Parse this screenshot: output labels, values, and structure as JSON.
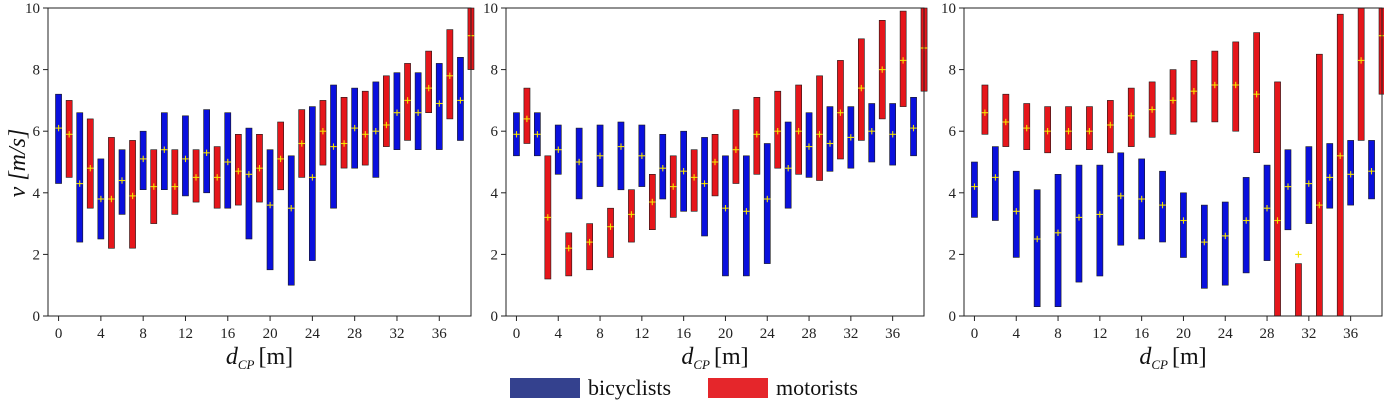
{
  "colors": {
    "bicyclists": "#0a10dd",
    "motorists": "#e5161b",
    "legend_bicyclists": "#34418e",
    "legend_motorists": "#e5262b",
    "median": "#f5e400",
    "axis": "#222222"
  },
  "legend": {
    "bicyclists": "bicyclists",
    "motorists": "motorists",
    "placement": "bottom-center"
  },
  "axes": {
    "ylabel": "v [m/s]",
    "xlabel_main": "d",
    "xlabel_sub": "CP",
    "xlabel_unit": "[m]"
  },
  "chart_data": [
    {
      "type": "range-bar",
      "xlim": [
        -1,
        39
      ],
      "ylim": [
        0,
        10
      ],
      "xticks": [
        0,
        4,
        8,
        12,
        16,
        20,
        24,
        28,
        32,
        36
      ],
      "yticks": [
        0,
        2,
        4,
        6,
        8,
        10
      ],
      "grid": false,
      "series": [
        {
          "name": "bicyclists",
          "x": [
            0,
            2,
            4,
            6,
            8,
            10,
            12,
            14,
            16,
            18,
            20,
            22,
            24,
            26,
            28,
            30,
            32,
            34,
            36,
            38
          ],
          "low": [
            4.3,
            2.4,
            2.5,
            3.3,
            4.1,
            4.1,
            3.9,
            4.0,
            3.5,
            2.5,
            1.5,
            1.0,
            1.8,
            3.5,
            4.8,
            4.5,
            5.4,
            5.4,
            5.4,
            5.7
          ],
          "high": [
            7.2,
            6.6,
            5.1,
            5.4,
            6.0,
            6.6,
            6.5,
            6.7,
            6.6,
            6.1,
            5.4,
            5.2,
            6.8,
            7.5,
            7.4,
            7.6,
            7.9,
            7.9,
            8.2,
            8.4
          ],
          "median": [
            6.1,
            4.3,
            3.8,
            4.4,
            5.1,
            5.4,
            5.1,
            5.3,
            5.0,
            4.6,
            3.6,
            3.5,
            4.5,
            5.5,
            6.1,
            6.0,
            6.6,
            6.6,
            6.9,
            7.0
          ]
        },
        {
          "name": "motorists",
          "x": [
            1,
            3,
            5,
            7,
            9,
            11,
            13,
            15,
            17,
            19,
            21,
            23,
            25,
            27,
            29,
            31,
            33,
            35,
            37,
            39
          ],
          "low": [
            4.5,
            3.5,
            2.2,
            2.2,
            3.0,
            3.3,
            3.7,
            3.5,
            3.6,
            3.7,
            4.1,
            4.5,
            4.9,
            4.8,
            4.9,
            5.5,
            5.7,
            6.6,
            6.4,
            8.0
          ],
          "high": [
            7.0,
            6.4,
            5.8,
            5.7,
            5.4,
            5.4,
            5.4,
            5.5,
            5.9,
            5.9,
            6.3,
            6.7,
            7.0,
            7.1,
            7.3,
            7.8,
            8.2,
            8.6,
            9.3,
            10.0
          ],
          "median": [
            5.9,
            4.8,
            3.8,
            3.9,
            4.2,
            4.2,
            4.5,
            4.5,
            4.7,
            4.8,
            5.1,
            5.6,
            6.0,
            5.6,
            5.9,
            6.2,
            7.0,
            7.4,
            7.8,
            9.1
          ]
        }
      ]
    },
    {
      "type": "range-bar",
      "xlim": [
        -1,
        39
      ],
      "ylim": [
        0,
        10
      ],
      "xticks": [
        0,
        4,
        8,
        12,
        16,
        20,
        24,
        28,
        32,
        36
      ],
      "yticks": [
        0,
        2,
        4,
        6,
        8,
        10
      ],
      "grid": false,
      "series": [
        {
          "name": "bicyclists",
          "x": [
            0,
            2,
            4,
            6,
            8,
            10,
            12,
            14,
            16,
            18,
            20,
            22,
            24,
            26,
            28,
            30,
            32,
            34,
            36,
            38
          ],
          "low": [
            5.2,
            5.2,
            4.6,
            3.8,
            4.2,
            4.1,
            4.2,
            3.8,
            3.4,
            2.6,
            1.3,
            1.3,
            1.7,
            3.5,
            4.5,
            4.7,
            4.8,
            5.0,
            4.9,
            5.2
          ],
          "high": [
            6.6,
            6.6,
            6.2,
            6.1,
            6.2,
            6.3,
            6.2,
            5.9,
            6.0,
            5.8,
            5.2,
            5.2,
            5.6,
            6.3,
            6.6,
            6.8,
            6.8,
            6.9,
            6.9,
            7.1
          ],
          "median": [
            5.9,
            5.9,
            5.4,
            5.0,
            5.2,
            5.5,
            5.2,
            4.8,
            4.7,
            4.3,
            3.5,
            3.4,
            3.8,
            4.8,
            5.5,
            5.6,
            5.8,
            6.0,
            5.9,
            6.1
          ]
        },
        {
          "name": "motorists",
          "x": [
            1,
            3,
            5,
            7,
            9,
            11,
            13,
            15,
            17,
            19,
            21,
            23,
            25,
            27,
            29,
            31,
            33,
            35,
            37,
            39
          ],
          "low": [
            5.6,
            1.2,
            1.3,
            1.5,
            1.9,
            2.4,
            2.8,
            3.2,
            3.4,
            3.9,
            4.3,
            4.6,
            4.8,
            4.6,
            4.4,
            5.1,
            5.7,
            6.4,
            6.8,
            7.3
          ],
          "high": [
            7.4,
            5.2,
            2.7,
            3.0,
            3.5,
            4.1,
            4.6,
            5.2,
            5.4,
            5.9,
            6.7,
            7.1,
            7.3,
            7.5,
            7.8,
            8.3,
            9.0,
            9.6,
            9.9,
            10.0
          ],
          "median": [
            6.4,
            3.2,
            2.2,
            2.4,
            2.9,
            3.3,
            3.7,
            4.2,
            4.5,
            5.0,
            5.4,
            5.9,
            6.0,
            6.0,
            5.9,
            6.6,
            7.4,
            8.0,
            8.3,
            8.7
          ]
        }
      ]
    },
    {
      "type": "range-bar",
      "xlim": [
        -1,
        39
      ],
      "ylim": [
        0,
        10
      ],
      "xticks": [
        0,
        4,
        8,
        12,
        16,
        20,
        24,
        28,
        32,
        36
      ],
      "yticks": [
        0,
        2,
        4,
        6,
        8,
        10
      ],
      "grid": false,
      "series": [
        {
          "name": "bicyclists",
          "x": [
            0,
            2,
            4,
            6,
            8,
            10,
            12,
            14,
            16,
            18,
            20,
            22,
            24,
            26,
            28,
            30,
            32,
            34,
            36,
            38
          ],
          "low": [
            3.2,
            3.1,
            1.9,
            0.3,
            0.3,
            1.1,
            1.3,
            2.3,
            2.5,
            2.4,
            1.9,
            0.9,
            1.0,
            1.4,
            1.8,
            2.8,
            3.0,
            3.5,
            3.6,
            3.8
          ],
          "high": [
            5.0,
            5.5,
            4.7,
            4.1,
            4.6,
            4.9,
            4.9,
            5.3,
            5.1,
            4.7,
            4.0,
            3.6,
            3.7,
            4.5,
            4.9,
            5.4,
            5.5,
            5.6,
            5.7,
            5.7
          ],
          "median": [
            4.2,
            4.5,
            3.4,
            2.5,
            2.7,
            3.2,
            3.3,
            3.9,
            3.8,
            3.6,
            3.1,
            2.4,
            2.6,
            3.1,
            3.5,
            4.2,
            4.3,
            4.5,
            4.6,
            4.7
          ]
        },
        {
          "name": "motorists",
          "x": [
            1,
            3,
            5,
            7,
            9,
            11,
            13,
            15,
            17,
            19,
            21,
            23,
            25,
            27,
            29,
            31,
            33,
            35,
            37,
            39
          ],
          "low": [
            5.9,
            5.5,
            5.4,
            5.3,
            5.4,
            5.4,
            5.3,
            5.5,
            5.8,
            5.9,
            6.3,
            6.3,
            6.0,
            5.3,
            0.0,
            0.0,
            0.0,
            0.0,
            5.7,
            7.2
          ],
          "high": [
            7.5,
            7.2,
            6.9,
            6.8,
            6.8,
            6.8,
            7.0,
            7.4,
            7.6,
            8.0,
            8.3,
            8.6,
            8.9,
            9.2,
            7.6,
            1.7,
            8.5,
            9.8,
            10.0,
            10.0
          ],
          "median": [
            6.6,
            6.3,
            6.1,
            6.0,
            6.0,
            6.0,
            6.2,
            6.5,
            6.7,
            7.0,
            7.3,
            7.5,
            7.5,
            7.2,
            3.1,
            2.0,
            3.6,
            5.2,
            8.3,
            9.1
          ]
        }
      ]
    }
  ]
}
